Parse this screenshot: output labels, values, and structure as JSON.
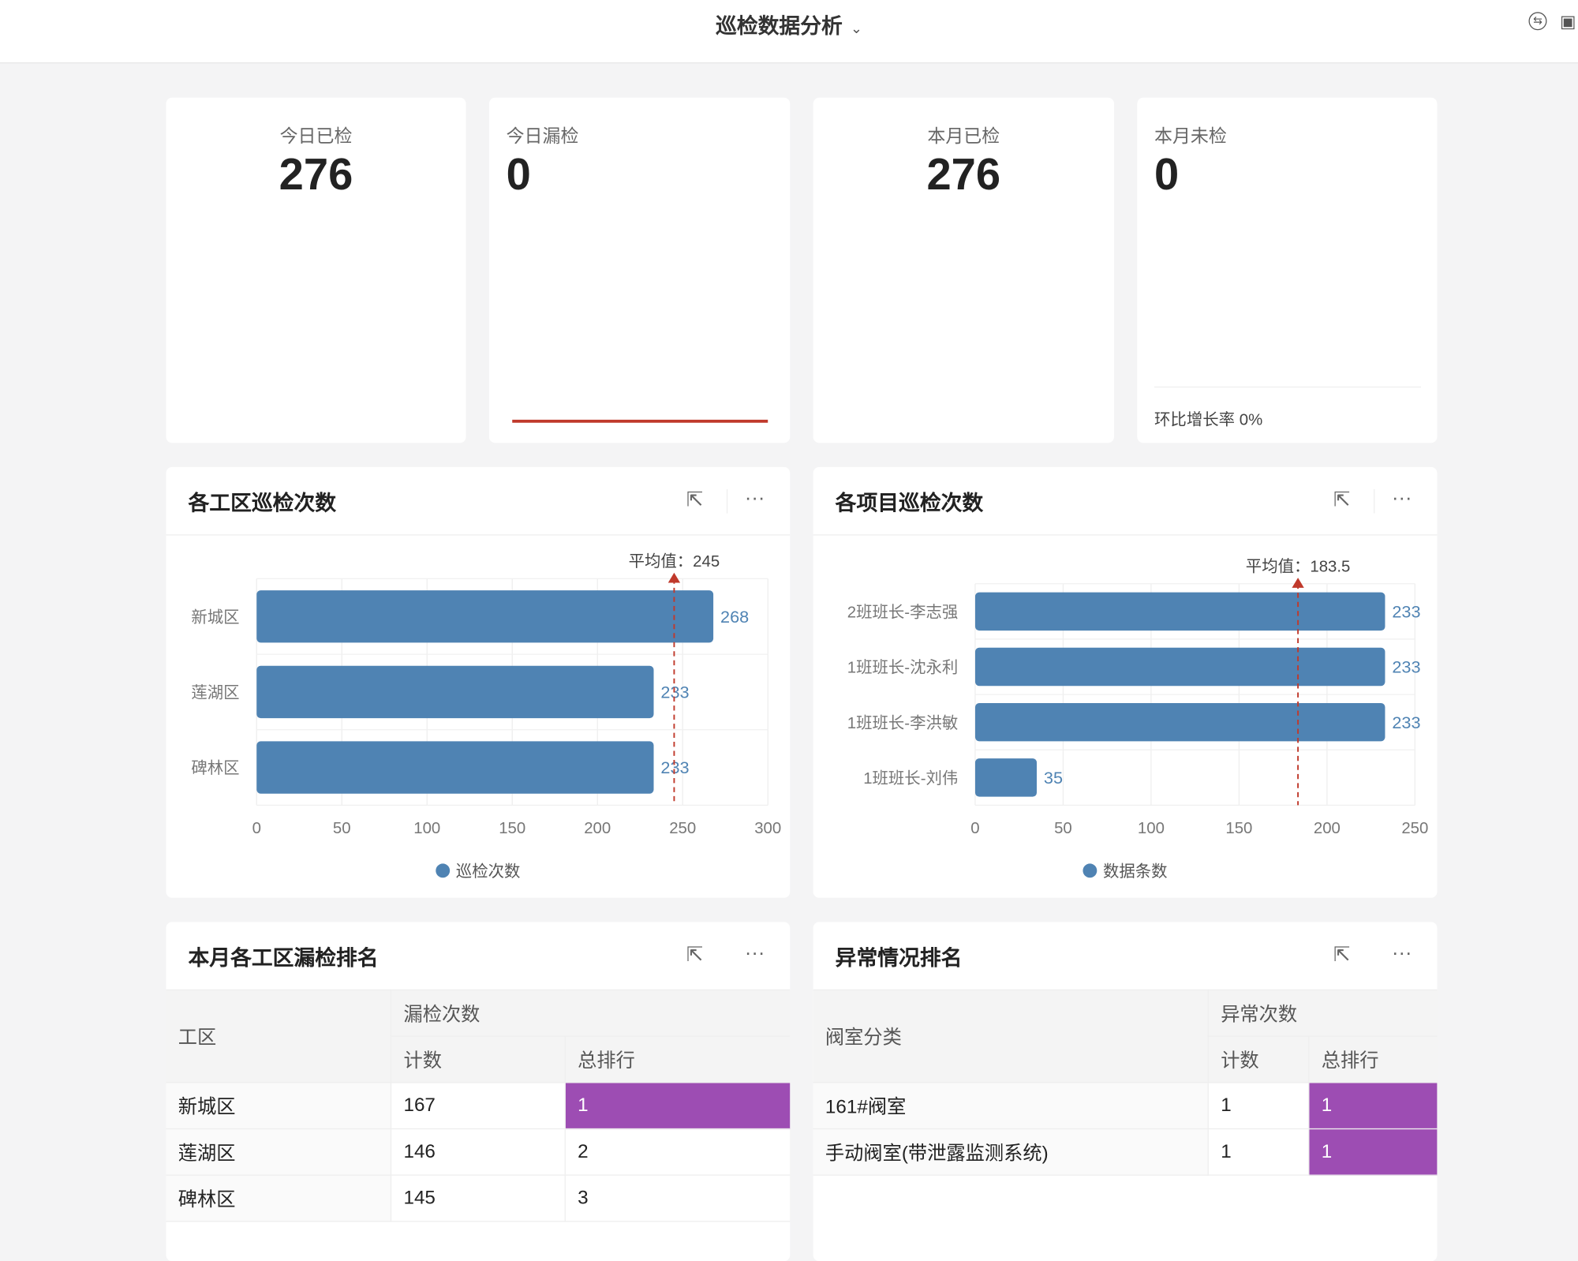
{
  "header": {
    "title": "巡检数据分析",
    "icons": [
      "switch-icon",
      "fullscreen-icon"
    ]
  },
  "kpis": [
    {
      "label": "今日已检",
      "value": "276"
    },
    {
      "label": "今日漏检",
      "value": "0"
    },
    {
      "label": "本月已检",
      "value": "276"
    },
    {
      "label": "本月未检",
      "value": "0",
      "footer": "环比增长率 0%"
    }
  ],
  "colors": {
    "bar": "#4f83b3",
    "avg_line": "#c0392b",
    "highlight": "#9d4db3",
    "trend_line": "#c0392b"
  },
  "chart_data": [
    {
      "type": "bar",
      "orientation": "horizontal",
      "title": "各工区巡检次数",
      "categories": [
        "新城区",
        "莲湖区",
        "碑林区"
      ],
      "series": [
        {
          "name": "巡检次数",
          "values": [
            268,
            233,
            233
          ]
        }
      ],
      "xlim": [
        0,
        300
      ],
      "xticks": [
        0,
        50,
        100,
        150,
        200,
        250,
        300
      ],
      "average": {
        "label": "平均值：",
        "value": 245
      },
      "legend": "bottom",
      "grid": true
    },
    {
      "type": "bar",
      "orientation": "horizontal",
      "title": "各项目巡检次数",
      "categories": [
        "2班班长-李志强",
        "1班班长-沈永利",
        "1班班长-李洪敏",
        "1班班长-刘伟"
      ],
      "series": [
        {
          "name": "数据条数",
          "values": [
            233,
            233,
            233,
            35
          ]
        }
      ],
      "xlim": [
        0,
        250
      ],
      "xticks": [
        0,
        50,
        100,
        150,
        200,
        250
      ],
      "average": {
        "label": "平均值：",
        "value": 183.5
      },
      "legend": "bottom",
      "grid": true
    }
  ],
  "tables": [
    {
      "title": "本月各工区漏检排名",
      "col0": "工区",
      "group": "漏检次数",
      "sub": [
        "计数",
        "总排行"
      ],
      "rows": [
        [
          "新城区",
          "167",
          "1"
        ],
        [
          "莲湖区",
          "146",
          "2"
        ],
        [
          "碑林区",
          "145",
          "3"
        ]
      ]
    },
    {
      "title": "异常情况排名",
      "col0": "阀室分类",
      "group": "异常次数",
      "sub": [
        "计数",
        "总排行"
      ],
      "rows": [
        [
          "161#阀室",
          "1",
          "1"
        ],
        [
          "手动阀室(带泄露监测系统)",
          "1",
          "1"
        ]
      ]
    }
  ]
}
